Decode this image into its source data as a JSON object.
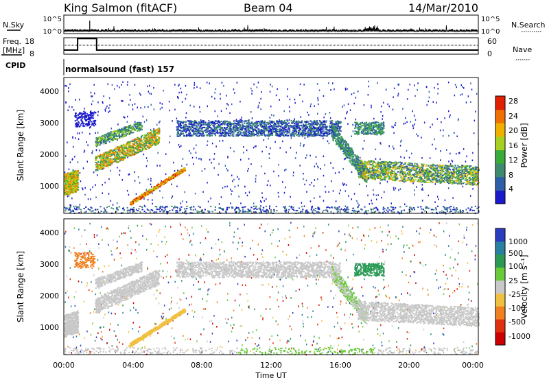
{
  "header": {
    "station": "King Salmon (fitACF)",
    "beam": "Beam 04",
    "date": "14/Mar/2010"
  },
  "labels": {
    "nsky": "N.Sky",
    "nsearch": "N.Search",
    "freq_line1": "Freq.",
    "freq_line2": "[MHz]",
    "nave": "Nave",
    "cpid": "CPID",
    "cpid_value": "normalsound (fast) 157",
    "slant_range": "Slant Range [km]",
    "power": "Power [dB]",
    "velocity": "Velocity [m s⁻¹]",
    "time_axis": "Time UT"
  },
  "chart_data": [
    {
      "type": "line",
      "name": "noise",
      "ylim_labels": [
        "10^5",
        "10^0"
      ],
      "right_labels": [
        "10^5",
        "10^0"
      ]
    },
    {
      "type": "line",
      "name": "frequency-nave",
      "ylim": [
        8,
        18
      ],
      "yticks_left": [
        "18",
        "8"
      ],
      "yticks_right": [
        "60",
        "0"
      ],
      "freq_series": [
        {
          "x": 0.0,
          "y": 10.5
        },
        {
          "x": 0.8,
          "y": 10.5
        },
        {
          "x": 0.8,
          "y": 17.5
        },
        {
          "x": 1.9,
          "y": 17.5
        },
        {
          "x": 1.9,
          "y": 10.5
        },
        {
          "x": 24.0,
          "y": 10.5
        }
      ]
    },
    {
      "type": "heatmap",
      "name": "power",
      "xlim": [
        0,
        24
      ],
      "ylim": [
        180,
        4500
      ],
      "yticks": [
        "1000",
        "2000",
        "3000",
        "4000"
      ],
      "colorbar": {
        "ticks": [
          "4",
          "8",
          "12",
          "16",
          "20",
          "24",
          "28"
        ],
        "range": [
          0,
          30
        ],
        "colors": [
          "#1a1acc",
          "#2d5fa8",
          "#3d8a6e",
          "#3aaa3a",
          "#a8d020",
          "#f0b000",
          "#f07000",
          "#e02000"
        ]
      }
    },
    {
      "type": "heatmap",
      "name": "velocity",
      "xlim": [
        0,
        24
      ],
      "ylim": [
        180,
        4500
      ],
      "yticks": [
        "1000",
        "2000",
        "3000",
        "4000"
      ],
      "colorbar": {
        "ticks": [
          "1000",
          "500",
          "100",
          "25",
          "-25",
          "-100",
          "-500",
          "-1000"
        ],
        "colors": [
          "#2a3cbf",
          "#2a80a0",
          "#2a9a55",
          "#6acb3a",
          "#c8c8c8",
          "#f0c040",
          "#f08020",
          "#e03010",
          "#cc0000"
        ]
      }
    }
  ],
  "x_ticks": [
    "00:00",
    "04:00",
    "08:00",
    "12:00",
    "16:00",
    "20:00",
    "00:00"
  ]
}
